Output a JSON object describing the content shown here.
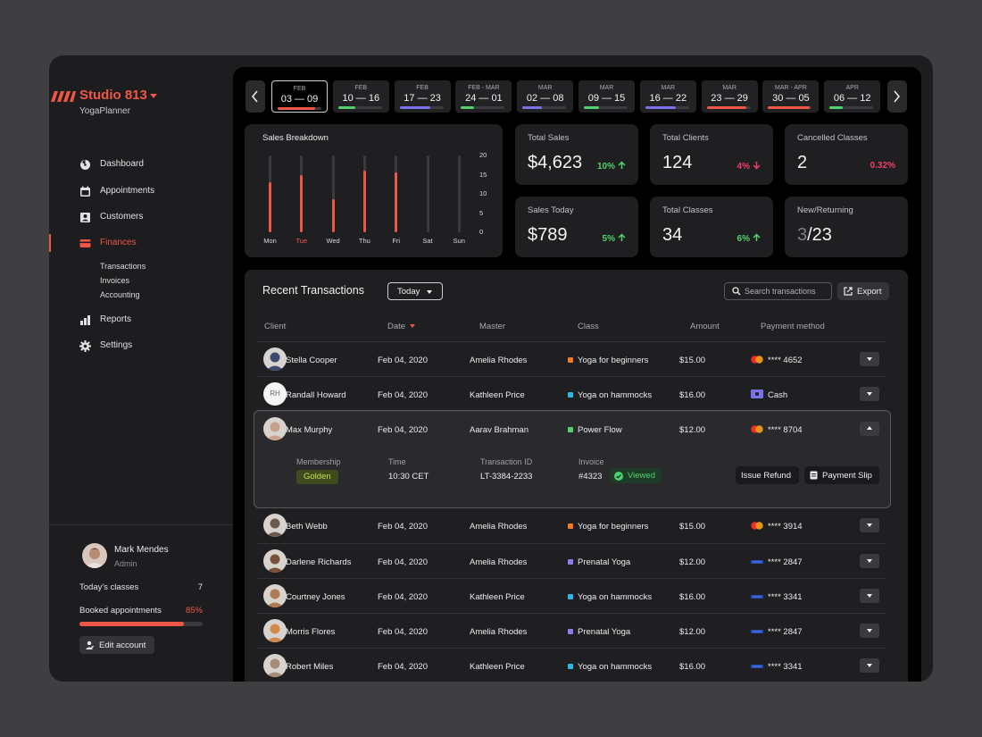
{
  "brand": {
    "name": "Studio 813",
    "subtitle": "YogaPlanner"
  },
  "nav": {
    "items": [
      {
        "label": "Dashboard",
        "icon": "dashboard-icon"
      },
      {
        "label": "Appointments",
        "icon": "calendar-icon"
      },
      {
        "label": "Customers",
        "icon": "contact-card-icon"
      },
      {
        "label": "Finances",
        "icon": "wallet-icon",
        "active": true
      },
      {
        "label": "Reports",
        "icon": "bar-chart-icon"
      },
      {
        "label": "Settings",
        "icon": "gear-icon"
      }
    ],
    "finance_sub": [
      "Transactions",
      "Invoices",
      "Accounting"
    ]
  },
  "profile": {
    "name": "Mark Mendes",
    "role": "Admin",
    "todays_classes_label": "Today's classes",
    "todays_classes_value": "7",
    "booked_label": "Booked appointments",
    "booked_value": "85%",
    "booked_fraction": 0.85,
    "edit_label": "Edit account"
  },
  "weeks": [
    {
      "month": "FEB",
      "range": "03 — 09",
      "color": "#ef5646",
      "fill": 0.85,
      "selected": true
    },
    {
      "month": "FEB",
      "range": "10 — 16",
      "color": "#4fd36a",
      "fill": 0.4
    },
    {
      "month": "FEB",
      "range": "17 — 23",
      "color": "#7b72e9",
      "fill": 0.7
    },
    {
      "month": "FEB - MAR",
      "range": "24 — 01",
      "color": "#4fd36a",
      "fill": 0.3
    },
    {
      "month": "MAR",
      "range": "02 — 08",
      "color": "#7b72e9",
      "fill": 0.45
    },
    {
      "month": "MAR",
      "range": "09 — 15",
      "color": "#4fd36a",
      "fill": 0.35
    },
    {
      "month": "MAR",
      "range": "16 — 22",
      "color": "#7b72e9",
      "fill": 0.7
    },
    {
      "month": "MAR",
      "range": "23 — 29",
      "color": "#ef5646",
      "fill": 0.9
    },
    {
      "month": "MAR - APR",
      "range": "30 — 05",
      "color": "#ef5646",
      "fill": 0.95
    },
    {
      "month": "APR",
      "range": "06 — 12",
      "color": "#4fd36a",
      "fill": 0.3
    }
  ],
  "chart_data": {
    "type": "bar",
    "title": "Sales Breakdown",
    "categories": [
      "Mon",
      "Tue",
      "Wed",
      "Thu",
      "Fri",
      "Sat",
      "Sun"
    ],
    "highlight_category": "Tue",
    "values": [
      13,
      15,
      8.5,
      16,
      15.5,
      0,
      0
    ],
    "yticks": [
      20,
      15,
      10,
      5,
      0
    ],
    "ylim": [
      0,
      20
    ],
    "bar_color": "#ef5646",
    "grid": false
  },
  "kpis": [
    {
      "title": "Total Sales",
      "value": "$4,623",
      "change": "10%",
      "dir": "up"
    },
    {
      "title": "Total Clients",
      "value": "124",
      "change": "4%",
      "dir": "down"
    },
    {
      "title": "Cancelled Classes",
      "value": "2",
      "change": "0.32%",
      "dir": "down"
    },
    {
      "title": "Sales Today",
      "value": "$789",
      "change": "5%",
      "dir": "up"
    },
    {
      "title": "Total Classes",
      "value": "34",
      "change": "6%",
      "dir": "up"
    },
    {
      "title": "New/Returning",
      "value_dim": "3",
      "value": "/23"
    }
  ],
  "transactions": {
    "title": "Recent Transactions",
    "filter_label": "Today",
    "search_placeholder": "Search transactions",
    "export_label": "Export",
    "columns": [
      "Client",
      "Date",
      "Master",
      "Class",
      "Amount",
      "Payment method"
    ],
    "class_colors": {
      "Yoga for beginners": "#f07b22",
      "Yoga on hammocks": "#29b6e8",
      "Power Flow": "#4fd36a",
      "Prenatal Yoga": "#8b7cf0"
    },
    "rows": [
      {
        "client": "Stella Cooper",
        "date": "Feb 04, 2020",
        "master": "Amelia Rhodes",
        "class": "Yoga for beginners",
        "amount": "$15.00",
        "method": "mastercard",
        "payment": "**** 4652",
        "avatar": "#3d4a70"
      },
      {
        "client": "Randall Howard",
        "initials": "RH",
        "date": "Feb 04, 2020",
        "master": "Kathleen Price",
        "class": "Yoga on hammocks",
        "amount": "$16.00",
        "method": "cash",
        "payment": "Cash"
      },
      {
        "client": "Max Murphy",
        "date": "Feb 04, 2020",
        "master": "Aarav Brahman",
        "class": "Power Flow",
        "amount": "$12.00",
        "method": "mastercard",
        "payment": "**** 8704",
        "avatar": "#c9a08a",
        "expanded": true
      },
      {
        "client": "Beth Webb",
        "date": "Feb 04, 2020",
        "master": "Amelia Rhodes",
        "class": "Yoga for beginners",
        "amount": "$15.00",
        "method": "mastercard",
        "payment": "**** 3914",
        "avatar": "#6a5a4e"
      },
      {
        "client": "Darlene Richards",
        "date": "Feb 04, 2020",
        "master": "Amelia Rhodes",
        "class": "Prenatal Yoga",
        "amount": "$12.00",
        "method": "visa",
        "payment": "**** 2847",
        "avatar": "#7a5038"
      },
      {
        "client": "Courtney Jones",
        "date": "Feb 04, 2020",
        "master": "Kathleen Price",
        "class": "Yoga on hammocks",
        "amount": "$16.00",
        "method": "visa",
        "payment": "**** 3341",
        "avatar": "#b07a52"
      },
      {
        "client": "Morris Flores",
        "date": "Feb 04, 2020",
        "master": "Amelia Rhodes",
        "class": "Prenatal Yoga",
        "amount": "$12.00",
        "method": "visa",
        "payment": "**** 2847",
        "avatar": "#d08a4a"
      },
      {
        "client": "Robert Miles",
        "date": "Feb 04, 2020",
        "master": "Kathleen Price",
        "class": "Yoga on hammocks",
        "amount": "$16.00",
        "method": "visa",
        "payment": "**** 3341",
        "avatar": "#a88a78"
      }
    ],
    "detail": {
      "membership_label": "Membership",
      "membership_value": "Golden",
      "time_label": "Time",
      "time_value": "10:30 CET",
      "txid_label": "Transaction ID",
      "txid_value": "LT-3384-2233",
      "invoice_label": "Invoice",
      "invoice_value": "#4323",
      "invoice_status": "Viewed",
      "refund_label": "Issue Refund",
      "slip_label": "Payment Slip"
    }
  }
}
